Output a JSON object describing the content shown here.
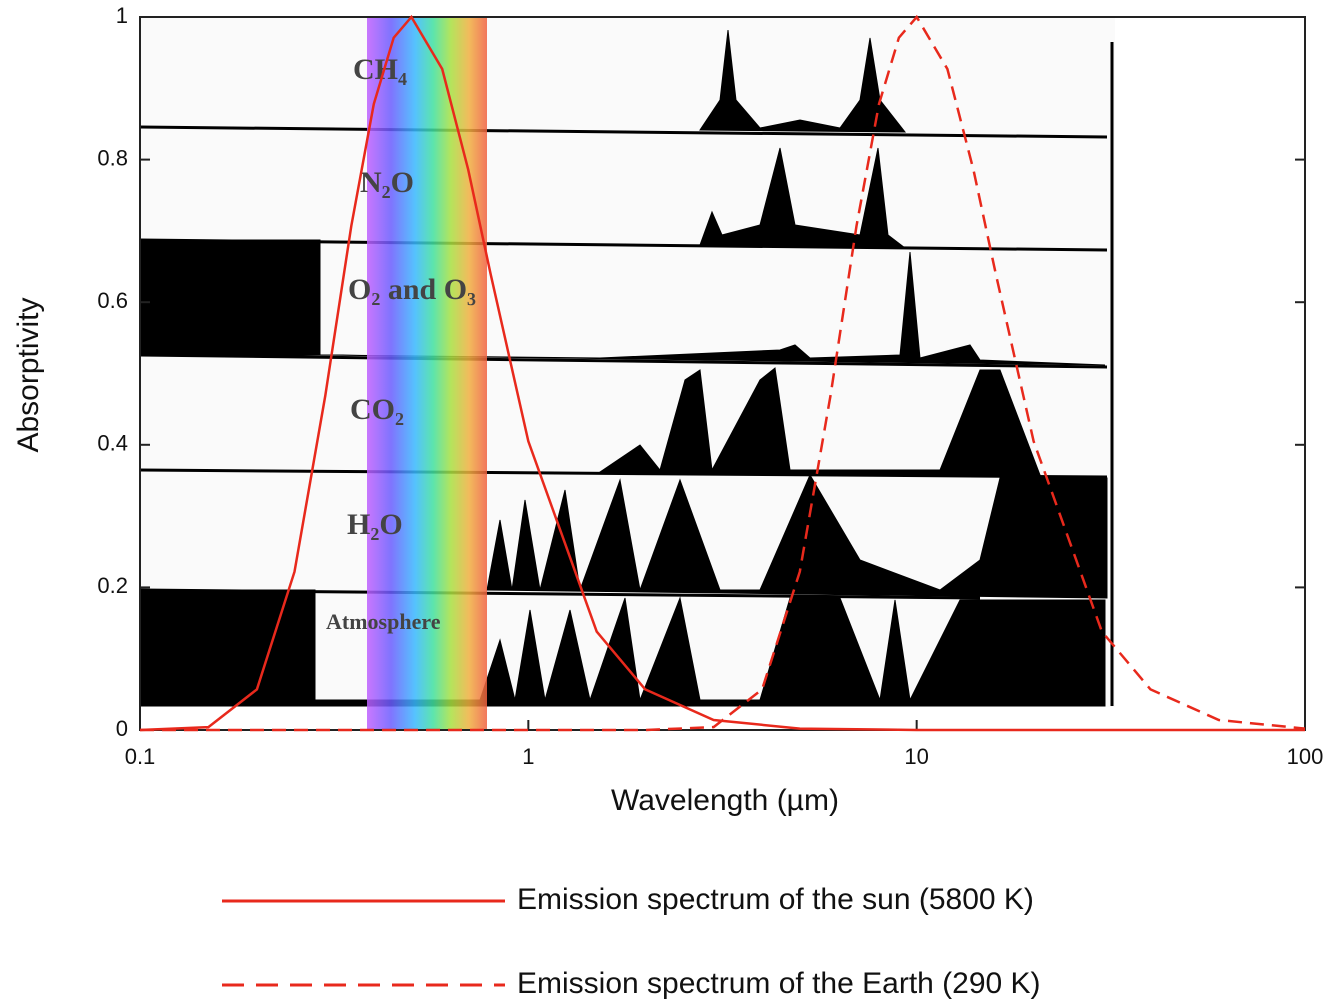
{
  "chart_data": {
    "type": "line",
    "xlabel": "Wavelength (µm)",
    "ylabel": "Absorptivity",
    "xscale": "log",
    "xlim": [
      0.1,
      100
    ],
    "xticks": [
      0.1,
      1,
      10,
      100
    ],
    "ylim": [
      0,
      1
    ],
    "yticks": [
      0,
      0.2,
      0.4,
      0.6,
      0.8,
      1
    ],
    "annotations": [
      "CH₄",
      "N₂O",
      "O₂ and O₃",
      "CO₂",
      "H₂O",
      "Atmosphere"
    ],
    "series": [
      {
        "name": "Emission spectrum of the sun (5800 K)",
        "color": "#e8291c",
        "dash": false,
        "x": [
          0.1,
          0.15,
          0.2,
          0.25,
          0.3,
          0.35,
          0.4,
          0.45,
          0.5,
          0.6,
          0.7,
          0.8,
          1,
          1.5,
          2,
          3,
          5,
          10,
          100
        ],
        "values": [
          0,
          0.004,
          0.057,
          0.222,
          0.469,
          0.707,
          0.878,
          0.971,
          1,
          0.927,
          0.786,
          0.639,
          0.405,
          0.138,
          0.057,
          0.014,
          0.002,
          0,
          0
        ]
      },
      {
        "name": "Emission spectrum of the Earth (290 K)",
        "color": "#e8291c",
        "dash": true,
        "x": [
          0.1,
          2,
          3,
          4,
          5,
          6,
          7,
          8,
          9,
          10,
          12,
          14,
          16,
          20,
          30,
          40,
          60,
          100
        ],
        "values": [
          0,
          0,
          0.004,
          0.057,
          0.222,
          0.469,
          0.707,
          0.878,
          0.971,
          1,
          0.927,
          0.786,
          0.639,
          0.405,
          0.138,
          0.057,
          0.014,
          0.002
        ]
      }
    ]
  }
}
